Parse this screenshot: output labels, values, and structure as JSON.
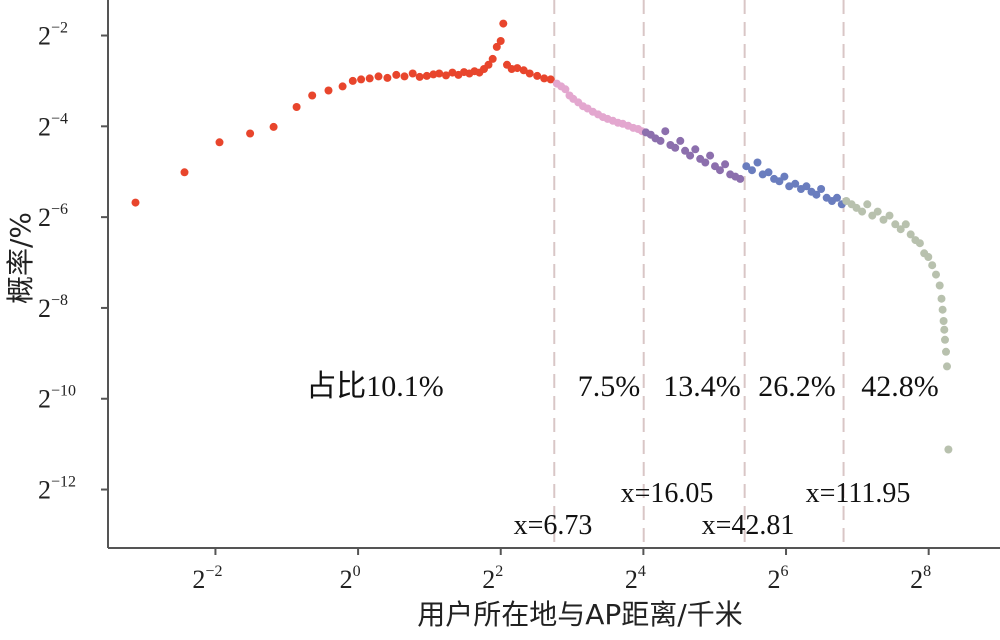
{
  "chart_data": {
    "type": "scatter",
    "xlabel": "用户所在地与AP距离/千米",
    "ylabel": "概率/%",
    "x_scale": "log2",
    "y_scale": "log2",
    "xlim": [
      0.088,
      512
    ],
    "ylim": [
      0.0001,
      0.43
    ],
    "x_ticks": [
      {
        "value": 0.25,
        "base": "2",
        "exp": "−2"
      },
      {
        "value": 1,
        "base": "2",
        "exp": "0"
      },
      {
        "value": 4,
        "base": "2",
        "exp": "2"
      },
      {
        "value": 16,
        "base": "2",
        "exp": "4"
      },
      {
        "value": 64,
        "base": "2",
        "exp": "6"
      },
      {
        "value": 256,
        "base": "2",
        "exp": "8"
      }
    ],
    "y_ticks": [
      {
        "value": 0.25,
        "base": "2",
        "exp": "−2"
      },
      {
        "value": 0.0625,
        "base": "2",
        "exp": "−4"
      },
      {
        "value": 0.015625,
        "base": "2",
        "exp": "−6"
      },
      {
        "value": 0.00390625,
        "base": "2",
        "exp": "−8"
      },
      {
        "value": 0.0009765625,
        "base": "2",
        "exp": "−10"
      },
      {
        "value": 0.000244140625,
        "base": "2",
        "exp": "−12"
      }
    ],
    "thresholds": [
      {
        "x": 6.73,
        "label": "x=6.73"
      },
      {
        "x": 16.05,
        "label": "x=16.05"
      },
      {
        "x": 42.81,
        "label": "x=42.81"
      },
      {
        "x": 111.95,
        "label": "x=111.95"
      }
    ],
    "segment_labels": [
      "占比10.1%",
      "7.5%",
      "13.4%",
      "26.2%",
      "42.8%"
    ],
    "segment_colors": [
      "#e8452c",
      "#e3a7cf",
      "#8c6fad",
      "#6a7dbe",
      "#b8c1ae"
    ],
    "series": [
      {
        "points": [
          [
            0.115,
            0.0195
          ],
          [
            0.185,
            0.031
          ],
          [
            0.26,
            0.049
          ],
          [
            0.35,
            0.056
          ],
          [
            0.44,
            0.062
          ],
          [
            0.55,
            0.084
          ],
          [
            0.64,
            0.1
          ],
          [
            0.75,
            0.108
          ],
          [
            0.86,
            0.115
          ],
          [
            0.95,
            0.125
          ],
          [
            1.03,
            0.128
          ],
          [
            1.12,
            0.13
          ],
          [
            1.22,
            0.134
          ],
          [
            1.33,
            0.131
          ],
          [
            1.45,
            0.137
          ],
          [
            1.57,
            0.134
          ],
          [
            1.7,
            0.14
          ],
          [
            1.82,
            0.133
          ],
          [
            1.95,
            0.135
          ],
          [
            2.08,
            0.138
          ],
          [
            2.2,
            0.14
          ],
          [
            2.35,
            0.136
          ],
          [
            2.5,
            0.142
          ],
          [
            2.65,
            0.137
          ],
          [
            2.8,
            0.143
          ],
          [
            2.95,
            0.14
          ],
          [
            3.1,
            0.145
          ],
          [
            3.25,
            0.142
          ],
          [
            3.4,
            0.15
          ],
          [
            3.55,
            0.16
          ],
          [
            3.7,
            0.175
          ],
          [
            3.85,
            0.21
          ],
          [
            4.0,
            0.23
          ],
          [
            4.1,
            0.3
          ],
          [
            4.25,
            0.16
          ],
          [
            4.45,
            0.15
          ],
          [
            4.7,
            0.152
          ],
          [
            5.0,
            0.147
          ],
          [
            5.3,
            0.14
          ],
          [
            5.7,
            0.135
          ],
          [
            6.1,
            0.13
          ],
          [
            6.5,
            0.128
          ]
        ]
      },
      {
        "points": [
          [
            6.9,
            0.12
          ],
          [
            7.2,
            0.115
          ],
          [
            7.5,
            0.11
          ],
          [
            7.8,
            0.1
          ],
          [
            8.1,
            0.095
          ],
          [
            8.5,
            0.09
          ],
          [
            8.9,
            0.085
          ],
          [
            9.3,
            0.082
          ],
          [
            9.8,
            0.078
          ],
          [
            10.3,
            0.075
          ],
          [
            10.8,
            0.072
          ],
          [
            11.3,
            0.07
          ],
          [
            11.9,
            0.068
          ],
          [
            12.5,
            0.066
          ],
          [
            13.1,
            0.065
          ],
          [
            13.8,
            0.063
          ],
          [
            14.5,
            0.061
          ],
          [
            15.2,
            0.06
          ],
          [
            15.8,
            0.058
          ]
        ]
      },
      {
        "points": [
          [
            16.4,
            0.057
          ],
          [
            17.2,
            0.055
          ],
          [
            18.0,
            0.052
          ],
          [
            18.9,
            0.05
          ],
          [
            19.8,
            0.058
          ],
          [
            20.8,
            0.047
          ],
          [
            21.8,
            0.045
          ],
          [
            22.9,
            0.05
          ],
          [
            24.0,
            0.043
          ],
          [
            25.2,
            0.04
          ],
          [
            26.5,
            0.044
          ],
          [
            27.8,
            0.038
          ],
          [
            29.2,
            0.036
          ],
          [
            30.6,
            0.04
          ],
          [
            32.1,
            0.034
          ],
          [
            33.7,
            0.032
          ],
          [
            35.4,
            0.035
          ],
          [
            37.2,
            0.03
          ],
          [
            39.1,
            0.029
          ],
          [
            41.0,
            0.028
          ]
        ]
      },
      {
        "points": [
          [
            43.5,
            0.034
          ],
          [
            46.0,
            0.032
          ],
          [
            48.5,
            0.036
          ],
          [
            51.0,
            0.03
          ],
          [
            54.0,
            0.031
          ],
          [
            57.0,
            0.028
          ],
          [
            60.0,
            0.027
          ],
          [
            63.0,
            0.029
          ],
          [
            66.0,
            0.025
          ],
          [
            70.0,
            0.026
          ],
          [
            74.0,
            0.024
          ],
          [
            78.0,
            0.025
          ],
          [
            82.0,
            0.023
          ],
          [
            86.0,
            0.022
          ],
          [
            90.0,
            0.024
          ],
          [
            95.0,
            0.021
          ],
          [
            100.0,
            0.02
          ],
          [
            105.0,
            0.021
          ],
          [
            110.0,
            0.019
          ]
        ]
      },
      {
        "points": [
          [
            115,
            0.02
          ],
          [
            121,
            0.019
          ],
          [
            127,
            0.018
          ],
          [
            134,
            0.017
          ],
          [
            141,
            0.019
          ],
          [
            148,
            0.016
          ],
          [
            156,
            0.017
          ],
          [
            165,
            0.015
          ],
          [
            175,
            0.016
          ],
          [
            185,
            0.014
          ],
          [
            195,
            0.013
          ],
          [
            205,
            0.014
          ],
          [
            215,
            0.012
          ],
          [
            225,
            0.011
          ],
          [
            235,
            0.0105
          ],
          [
            245,
            0.009
          ],
          [
            255,
            0.0085
          ],
          [
            265,
            0.0075
          ],
          [
            275,
            0.0065
          ],
          [
            285,
            0.0055
          ],
          [
            290,
            0.0045
          ],
          [
            293,
            0.0038
          ],
          [
            296,
            0.0032
          ],
          [
            298,
            0.0028
          ],
          [
            300,
            0.0024
          ],
          [
            303,
            0.002
          ],
          [
            306,
            0.0016
          ],
          [
            310,
            0.00045
          ]
        ]
      }
    ]
  }
}
